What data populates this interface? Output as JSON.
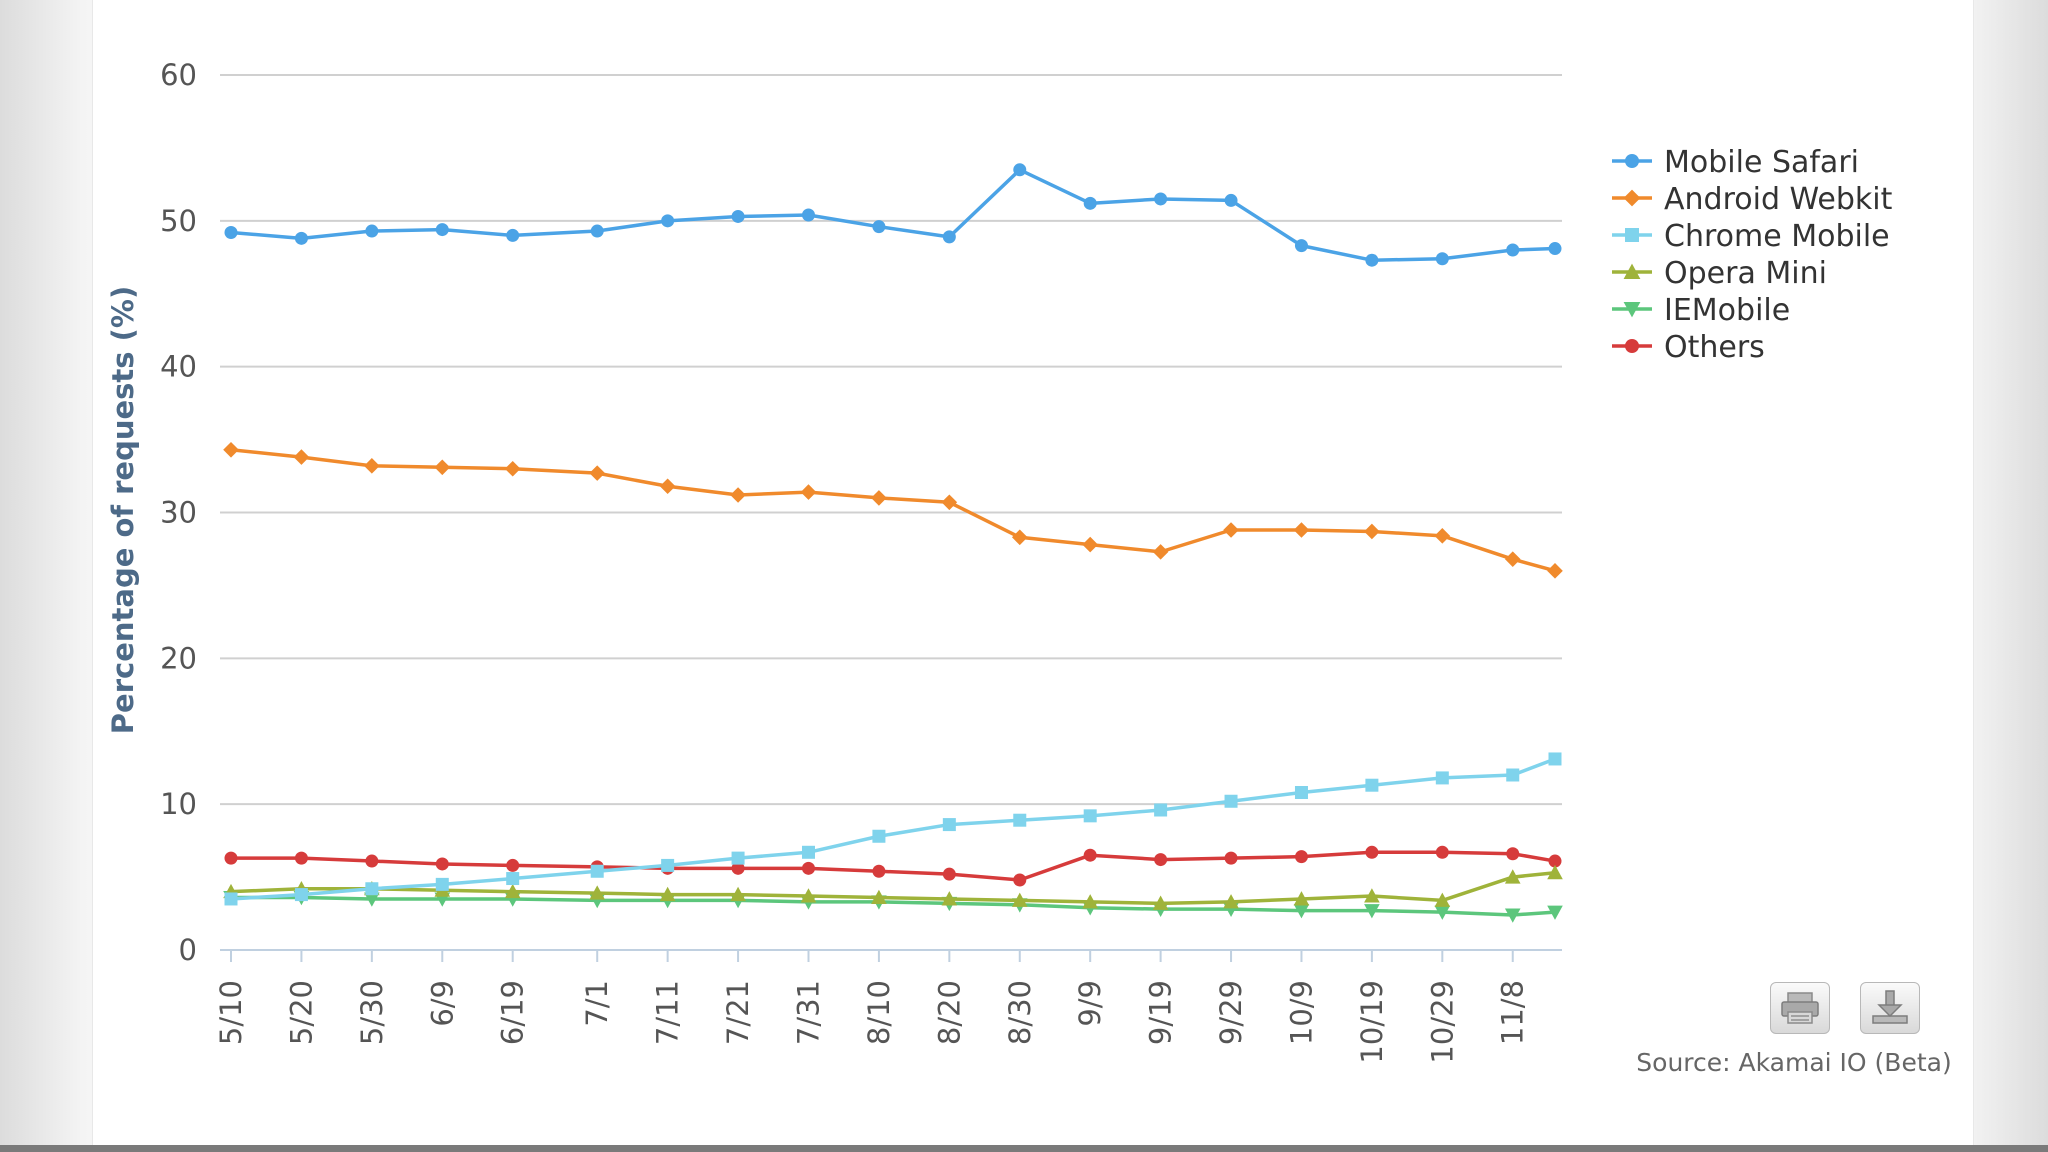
{
  "chart_data": {
    "type": "line",
    "title": "",
    "xlabel": "",
    "ylabel": "Percentage of requests (%)",
    "ylim": [
      0,
      60
    ],
    "yticks": [
      0,
      10,
      20,
      30,
      40,
      50,
      60
    ],
    "xticks": [
      "5/10",
      "5/20",
      "5/30",
      "6/9",
      "6/19",
      "7/1",
      "7/11",
      "7/21",
      "7/31",
      "8/10",
      "8/20",
      "8/30",
      "9/9",
      "9/19",
      "9/29",
      "10/9",
      "10/19",
      "10/29",
      "11/8"
    ],
    "grid": true,
    "legend_position": "right",
    "source": "Source: Akamai IO (Beta)",
    "series": [
      {
        "name": "Mobile Safari",
        "color": "#4ba3e6",
        "marker": "circle",
        "x": [
          "5/10",
          "5/20",
          "5/30",
          "6/9",
          "6/19",
          "7/1",
          "7/11",
          "7/21",
          "7/31",
          "8/10",
          "8/20",
          "8/30",
          "9/9",
          "9/19",
          "9/29",
          "10/9",
          "10/19",
          "10/29",
          "11/8",
          "11/14"
        ],
        "values": [
          49.2,
          48.8,
          49.3,
          49.4,
          49.0,
          49.3,
          50.0,
          50.3,
          50.4,
          49.6,
          48.9,
          53.5,
          51.2,
          51.5,
          51.4,
          48.3,
          47.3,
          47.4,
          48.0,
          48.1
        ]
      },
      {
        "name": "Android Webkit",
        "color": "#f08a2c",
        "marker": "diamond",
        "x": [
          "5/10",
          "5/20",
          "5/30",
          "6/9",
          "6/19",
          "7/1",
          "7/11",
          "7/21",
          "7/31",
          "8/10",
          "8/20",
          "8/30",
          "9/9",
          "9/19",
          "9/29",
          "10/9",
          "10/19",
          "10/29",
          "11/8",
          "11/14"
        ],
        "values": [
          34.3,
          33.8,
          33.2,
          33.1,
          33.0,
          32.7,
          31.8,
          31.2,
          31.4,
          31.0,
          30.7,
          28.3,
          27.8,
          27.3,
          28.8,
          28.8,
          28.7,
          28.4,
          26.8,
          26.0
        ]
      },
      {
        "name": "Chrome Mobile",
        "color": "#7fd3ec",
        "marker": "square",
        "x": [
          "5/10",
          "5/20",
          "5/30",
          "6/9",
          "6/19",
          "7/1",
          "7/11",
          "7/21",
          "7/31",
          "8/10",
          "8/20",
          "8/30",
          "9/9",
          "9/19",
          "9/29",
          "10/9",
          "10/19",
          "10/29",
          "11/8",
          "11/14"
        ],
        "values": [
          3.5,
          3.8,
          4.2,
          4.5,
          4.9,
          5.4,
          5.8,
          6.3,
          6.7,
          7.8,
          8.6,
          8.9,
          9.2,
          9.6,
          10.2,
          10.8,
          11.3,
          11.8,
          12.0,
          13.1
        ]
      },
      {
        "name": "Opera Mini",
        "color": "#9fb33a",
        "marker": "triangle",
        "x": [
          "5/10",
          "5/20",
          "5/30",
          "6/9",
          "6/19",
          "7/1",
          "7/11",
          "7/21",
          "7/31",
          "8/10",
          "8/20",
          "8/30",
          "9/9",
          "9/19",
          "9/29",
          "10/9",
          "10/19",
          "10/29",
          "11/8",
          "11/14"
        ],
        "values": [
          4.0,
          4.2,
          4.2,
          4.1,
          4.0,
          3.9,
          3.8,
          3.8,
          3.7,
          3.6,
          3.5,
          3.4,
          3.3,
          3.2,
          3.3,
          3.5,
          3.7,
          3.4,
          5.0,
          5.3
        ]
      },
      {
        "name": "IEMobile",
        "color": "#5cc67c",
        "marker": "triangle-down",
        "x": [
          "5/10",
          "5/20",
          "5/30",
          "6/9",
          "6/19",
          "7/1",
          "7/11",
          "7/21",
          "7/31",
          "8/10",
          "8/20",
          "8/30",
          "9/9",
          "9/19",
          "9/29",
          "10/9",
          "10/19",
          "10/29",
          "11/8",
          "11/14"
        ],
        "values": [
          3.6,
          3.6,
          3.5,
          3.5,
          3.5,
          3.4,
          3.4,
          3.4,
          3.3,
          3.3,
          3.2,
          3.1,
          2.9,
          2.8,
          2.8,
          2.7,
          2.7,
          2.6,
          2.4,
          2.6
        ]
      },
      {
        "name": "Others",
        "color": "#d63b3b",
        "marker": "circle",
        "x": [
          "5/10",
          "5/20",
          "5/30",
          "6/9",
          "6/19",
          "7/1",
          "7/11",
          "7/21",
          "7/31",
          "8/10",
          "8/20",
          "8/30",
          "9/9",
          "9/19",
          "9/29",
          "10/9",
          "10/19",
          "10/29",
          "11/8",
          "11/14"
        ],
        "values": [
          6.3,
          6.3,
          6.1,
          5.9,
          5.8,
          5.7,
          5.6,
          5.6,
          5.6,
          5.4,
          5.2,
          4.8,
          6.5,
          6.2,
          6.3,
          6.4,
          6.7,
          6.7,
          6.6,
          6.1
        ]
      }
    ]
  },
  "toolbar": {
    "print_icon": "printer-icon",
    "export_icon": "download-icon"
  }
}
